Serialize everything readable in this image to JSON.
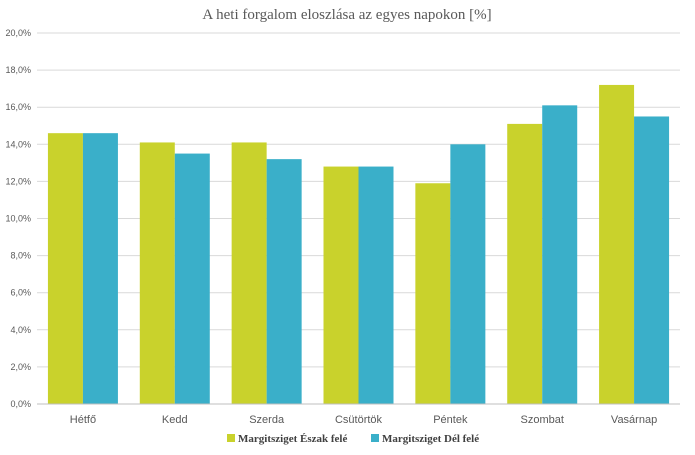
{
  "chart_data": {
    "type": "bar",
    "title": "A heti forgalom eloszlása az egyes napokon [%]",
    "xlabel": "",
    "ylabel": "",
    "ylim": [
      0,
      20
    ],
    "yticks": [
      "0,0%",
      "2,0%",
      "4,0%",
      "6,0%",
      "8,0%",
      "10,0%",
      "12,0%",
      "14,0%",
      "16,0%",
      "18,0%",
      "20,0%"
    ],
    "categories": [
      "Hétfő",
      "Kedd",
      "Szerda",
      "Csütörtök",
      "Péntek",
      "Szombat",
      "Vasárnap"
    ],
    "series": [
      {
        "name": "Margitsziget Észak felé",
        "color": "#c9d22c",
        "values": [
          14.6,
          14.1,
          14.1,
          12.8,
          11.9,
          15.1,
          17.2
        ]
      },
      {
        "name": "Margitsziget Dél felé",
        "color": "#3aafc9",
        "values": [
          14.6,
          13.5,
          13.2,
          12.8,
          14.0,
          16.1,
          15.5
        ]
      }
    ],
    "legend": "bottom",
    "grid": true
  }
}
